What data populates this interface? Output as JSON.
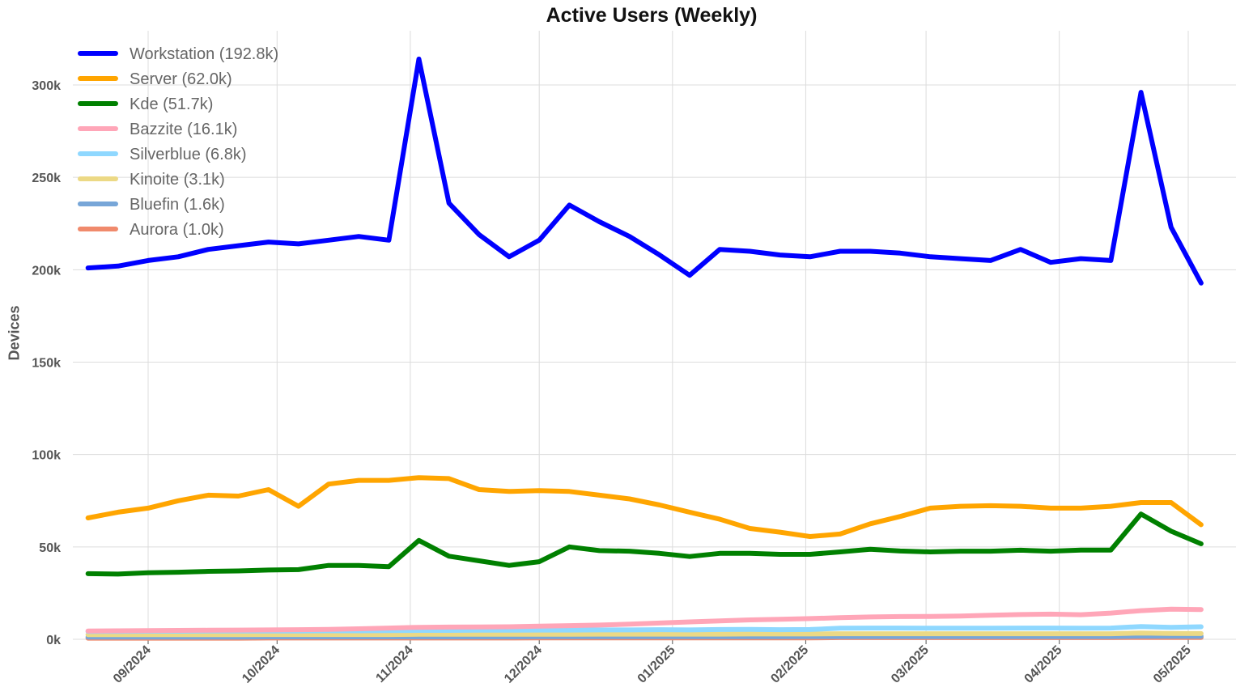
{
  "chart_data": {
    "type": "line",
    "title": "Active Users (Weekly)",
    "xlabel": "",
    "ylabel": "Devices",
    "ylim": [
      0,
      325000
    ],
    "grid": true,
    "legend_position": "top-left",
    "y_ticks": [
      {
        "value": 0,
        "label": "0k"
      },
      {
        "value": 50000,
        "label": "50k"
      },
      {
        "value": 100000,
        "label": "100k"
      },
      {
        "value": 150000,
        "label": "150k"
      },
      {
        "value": 200000,
        "label": "200k"
      },
      {
        "value": 250000,
        "label": "250k"
      },
      {
        "value": 300000,
        "label": "300k"
      }
    ],
    "x_ticks": [
      {
        "date": "2024-09-01",
        "label": "09/2024"
      },
      {
        "date": "2024-10-01",
        "label": "10/2024"
      },
      {
        "date": "2024-11-01",
        "label": "11/2024"
      },
      {
        "date": "2024-12-01",
        "label": "12/2024"
      },
      {
        "date": "2025-01-01",
        "label": "01/2025"
      },
      {
        "date": "2025-02-01",
        "label": "02/2025"
      },
      {
        "date": "2025-03-01",
        "label": "03/2025"
      },
      {
        "date": "2025-04-01",
        "label": "04/2025"
      },
      {
        "date": "2025-05-01",
        "label": "05/2025"
      }
    ],
    "x": [
      "2024-08-18",
      "2024-08-25",
      "2024-09-01",
      "2024-09-08",
      "2024-09-15",
      "2024-09-22",
      "2024-09-29",
      "2024-10-06",
      "2024-10-13",
      "2024-10-20",
      "2024-10-27",
      "2024-11-03",
      "2024-11-10",
      "2024-11-17",
      "2024-11-24",
      "2024-12-01",
      "2024-12-08",
      "2024-12-15",
      "2024-12-22",
      "2024-12-29",
      "2025-01-05",
      "2025-01-12",
      "2025-01-19",
      "2025-01-26",
      "2025-02-02",
      "2025-02-09",
      "2025-02-16",
      "2025-02-23",
      "2025-03-02",
      "2025-03-09",
      "2025-03-16",
      "2025-03-23",
      "2025-03-30",
      "2025-04-06",
      "2025-04-13",
      "2025-04-20",
      "2025-04-27",
      "2025-05-04"
    ],
    "series": [
      {
        "name": "Workstation",
        "legend_label": "Workstation (192.8k)",
        "color": "#0000ff",
        "values": [
          201000,
          202000,
          205000,
          207000,
          211000,
          213000,
          215000,
          214000,
          216000,
          218000,
          216000,
          314000,
          236000,
          219000,
          207000,
          216000,
          235000,
          226000,
          218000,
          208000,
          197000,
          211000,
          210000,
          208000,
          207000,
          210000,
          210000,
          209000,
          207000,
          206000,
          205000,
          211000,
          204000,
          206000,
          205000,
          296000,
          223000,
          192800
        ]
      },
      {
        "name": "Server",
        "legend_label": "Server (62.0k)",
        "color": "#ffa500",
        "values": [
          65700,
          68800,
          71000,
          75000,
          78000,
          77500,
          81000,
          72000,
          84000,
          86000,
          86000,
          87500,
          87000,
          81000,
          80000,
          80500,
          80000,
          78000,
          76000,
          72700,
          68800,
          65000,
          60000,
          58000,
          55600,
          57000,
          62500,
          66500,
          71000,
          72000,
          72300,
          72000,
          71000,
          71000,
          72000,
          74000,
          74000,
          62000
        ]
      },
      {
        "name": "Kde",
        "legend_label": "Kde (51.7k)",
        "color": "#008000",
        "values": [
          35500,
          35300,
          36000,
          36300,
          36800,
          37000,
          37500,
          37700,
          40000,
          40000,
          39300,
          53500,
          45000,
          42500,
          40000,
          42000,
          50000,
          48000,
          47700,
          46500,
          44800,
          46500,
          46500,
          46000,
          46000,
          47300,
          48700,
          47800,
          47300,
          47700,
          47700,
          48200,
          47700,
          48300,
          48300,
          67800,
          58500,
          51700
        ]
      },
      {
        "name": "Bazzite",
        "legend_label": "Bazzite (16.1k)",
        "color": "#ffa6b8",
        "values": [
          4500,
          4600,
          4700,
          4800,
          4900,
          5000,
          5100,
          5200,
          5400,
          5700,
          6100,
          6500,
          6600,
          6700,
          6800,
          7100,
          7400,
          7700,
          8200,
          8800,
          9400,
          10000,
          10500,
          10800,
          11200,
          11700,
          12100,
          12300,
          12400,
          12600,
          13000,
          13400,
          13600,
          13300,
          14200,
          15500,
          16300,
          16100
        ]
      },
      {
        "name": "Silverblue",
        "legend_label": "Silverblue (6.8k)",
        "color": "#8fd8ff",
        "values": [
          4200,
          4300,
          4400,
          4400,
          4500,
          4500,
          4500,
          4500,
          4600,
          4600,
          4700,
          4800,
          4800,
          4900,
          4900,
          5000,
          5000,
          5100,
          5100,
          5200,
          5100,
          5300,
          5400,
          5200,
          5300,
          6000,
          6100,
          6100,
          6000,
          6000,
          6000,
          6100,
          6100,
          6000,
          6100,
          6900,
          6500,
          6800
        ]
      },
      {
        "name": "Kinoite",
        "legend_label": "Kinoite (3.1k)",
        "color": "#ecd985",
        "values": [
          2500,
          2500,
          2500,
          2500,
          2500,
          2500,
          2600,
          2600,
          2600,
          2600,
          2600,
          2700,
          2700,
          2700,
          2700,
          2700,
          2700,
          2800,
          2800,
          2800,
          2800,
          2800,
          2900,
          2900,
          2900,
          3000,
          3000,
          3000,
          3000,
          3000,
          3000,
          3000,
          3000,
          3000,
          3000,
          3400,
          3200,
          3100
        ]
      },
      {
        "name": "Bluefin",
        "legend_label": "Bluefin (1.6k)",
        "color": "#77a6d8",
        "values": [
          1200,
          1200,
          1200,
          1200,
          1200,
          1200,
          1300,
          1300,
          1300,
          1300,
          1300,
          1300,
          1300,
          1300,
          1300,
          1400,
          1400,
          1400,
          1400,
          1400,
          1400,
          1400,
          1400,
          1400,
          1500,
          1500,
          1500,
          1500,
          1500,
          1500,
          1500,
          1500,
          1500,
          1500,
          1500,
          1700,
          1600,
          1600
        ]
      },
      {
        "name": "Aurora",
        "legend_label": "Aurora (1.0k)",
        "color": "#f08a6c",
        "values": [
          600,
          600,
          600,
          600,
          600,
          600,
          700,
          700,
          700,
          700,
          700,
          700,
          700,
          700,
          700,
          800,
          800,
          800,
          800,
          800,
          800,
          800,
          800,
          800,
          800,
          900,
          900,
          900,
          900,
          900,
          900,
          900,
          900,
          900,
          900,
          1000,
          1000,
          1000
        ]
      }
    ]
  }
}
